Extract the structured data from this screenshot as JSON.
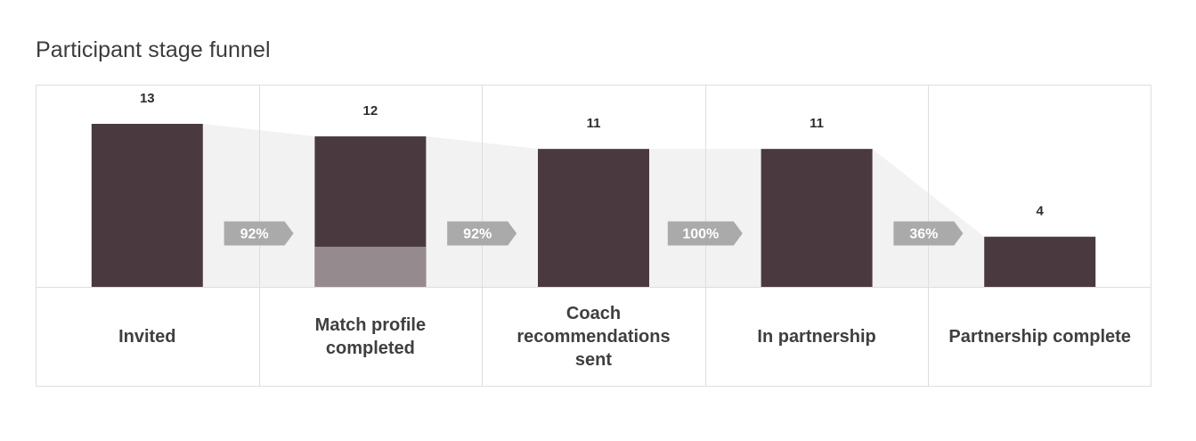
{
  "title": "Participant stage funnel",
  "colors": {
    "bar": "#4a3a40",
    "bar_secondary": "#958a8e",
    "connector": "#f2f2f2",
    "rate_badge": "#aaaaaa",
    "rate_text": "#ffffff",
    "grid": "#dedede",
    "value_text": "#2d2d2d"
  },
  "chart_data": {
    "type": "bar",
    "title": "Participant stage funnel",
    "categories": [
      "Invited",
      "Match profile completed",
      "Coach recommendations sent",
      "In partnership",
      "Partnership complete"
    ],
    "values": [
      13,
      12,
      11,
      11,
      4
    ],
    "value_labels": [
      "13",
      "12",
      "11",
      "11",
      "4"
    ],
    "secondary_values": [
      0,
      3.2,
      0,
      0,
      0
    ],
    "conversion_rates": [
      "92%",
      "92%",
      "100%",
      "36%"
    ],
    "ylim": [
      0,
      13
    ],
    "grid": true,
    "legend": "none"
  }
}
